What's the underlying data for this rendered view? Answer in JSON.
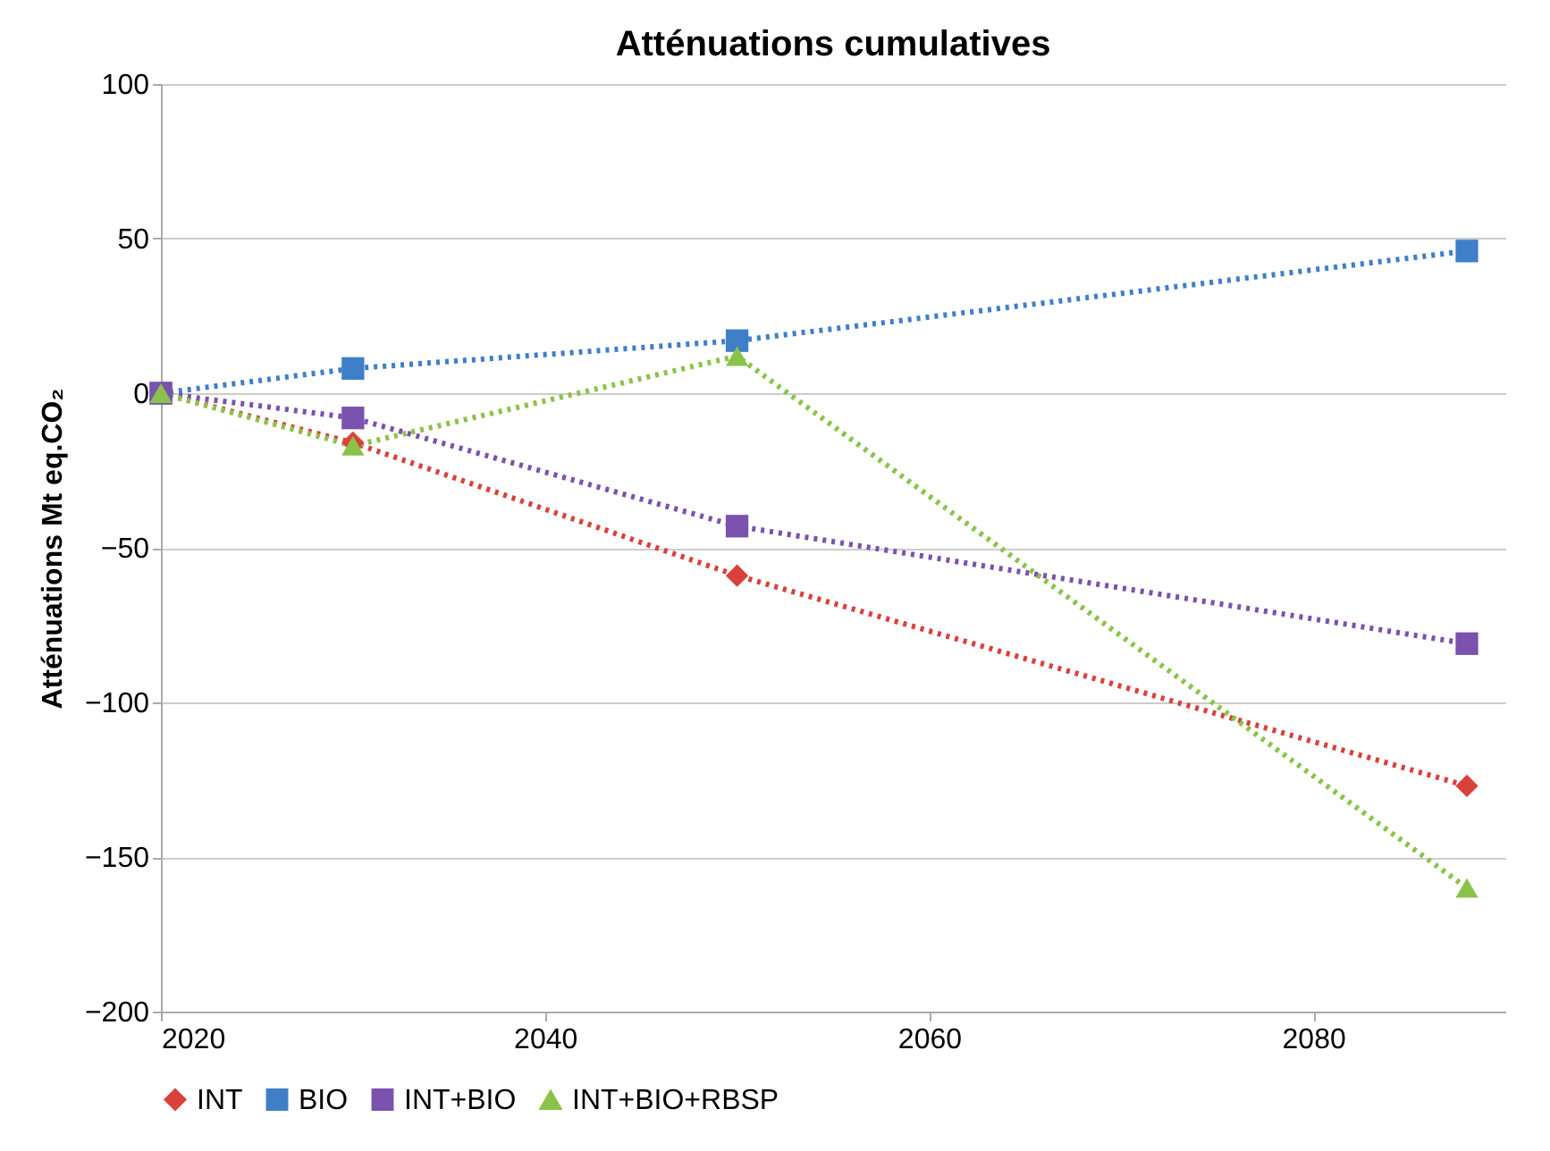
{
  "chart_data": {
    "type": "line",
    "title": "Atténuations cumulatives",
    "ylabel": "Atténuations Mt eq.CO₂",
    "x": [
      2020,
      2030,
      2050,
      2088
    ],
    "series": [
      {
        "name": "INT",
        "color": "#d9413b",
        "marker": "diamond",
        "values": [
          0,
          -16,
          -59,
          -127
        ]
      },
      {
        "name": "BIO",
        "color": "#3f7fc8",
        "marker": "square",
        "values": [
          0,
          8,
          17,
          46
        ]
      },
      {
        "name": "INT+BIO",
        "color": "#7b52ae",
        "marker": "square",
        "values": [
          0,
          -8,
          -43,
          -81
        ]
      },
      {
        "name": "INT+BIO+RBSP",
        "color": "#8bc34a",
        "marker": "triangle",
        "values": [
          0,
          -17,
          12,
          -160
        ]
      }
    ],
    "xlim": [
      2020,
      2090
    ],
    "xticks": [
      2020,
      2040,
      2060,
      2080
    ],
    "ylim": [
      -200,
      100
    ],
    "yticks": [
      -200,
      -150,
      -100,
      -50,
      0,
      50,
      100
    ],
    "grid": "y",
    "legend": "bottom",
    "line_style": "dotted"
  }
}
